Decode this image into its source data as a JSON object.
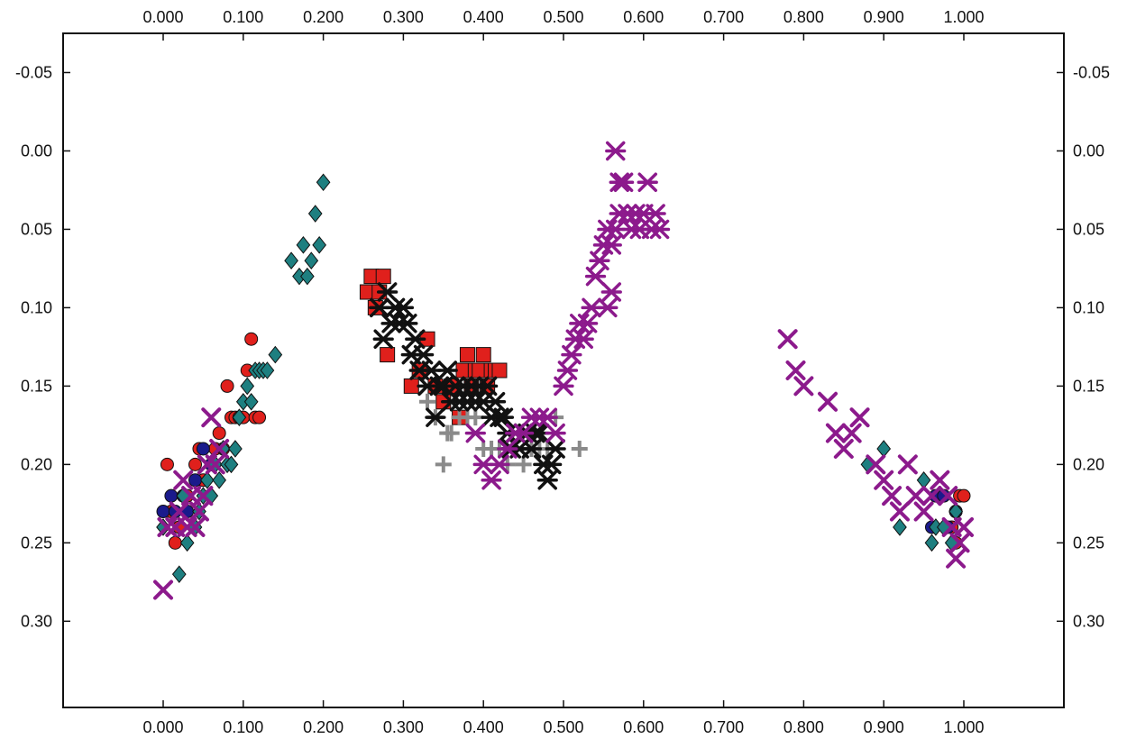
{
  "chart_data": {
    "type": "scatter",
    "title": "",
    "xlabel": "",
    "ylabel": "",
    "xlim": [
      -0.125,
      1.125
    ],
    "ylim": [
      0.355,
      -0.075
    ],
    "y_inverted": true,
    "grid": false,
    "legend": "none",
    "x_ticks": [
      "0.000",
      "0.100",
      "0.200",
      "0.300",
      "0.400",
      "0.500",
      "0.600",
      "0.700",
      "0.800",
      "0.900",
      "1.000"
    ],
    "y_ticks": [
      "-0.05",
      "0.00",
      "0.05",
      "0.10",
      "0.15",
      "0.20",
      "0.25",
      "0.30"
    ],
    "series": [
      {
        "marker": "circle",
        "color": "#e0201c",
        "points": [
          [
            0.005,
            0.2
          ],
          [
            0.01,
            0.23
          ],
          [
            0.015,
            0.25
          ],
          [
            0.02,
            0.24
          ],
          [
            0.03,
            0.22
          ],
          [
            0.04,
            0.2
          ],
          [
            0.045,
            0.19
          ],
          [
            0.05,
            0.21
          ],
          [
            0.06,
            0.2
          ],
          [
            0.065,
            0.19
          ],
          [
            0.07,
            0.18
          ],
          [
            0.075,
            0.19
          ],
          [
            0.08,
            0.15
          ],
          [
            0.085,
            0.17
          ],
          [
            0.09,
            0.17
          ],
          [
            0.095,
            0.17
          ],
          [
            0.1,
            0.17
          ],
          [
            0.105,
            0.14
          ],
          [
            0.11,
            0.12
          ],
          [
            0.115,
            0.17
          ],
          [
            0.12,
            0.17
          ],
          [
            0.985,
            0.24
          ],
          [
            0.99,
            0.23
          ],
          [
            0.995,
            0.22
          ],
          [
            1.0,
            0.22
          ],
          [
            0.99,
            0.25
          ]
        ]
      },
      {
        "marker": "circle",
        "color": "#1a1a8c",
        "points": [
          [
            0.0,
            0.23
          ],
          [
            0.01,
            0.22
          ],
          [
            0.015,
            0.23
          ],
          [
            0.025,
            0.22
          ],
          [
            0.03,
            0.23
          ],
          [
            0.04,
            0.21
          ],
          [
            0.05,
            0.19
          ],
          [
            0.06,
            0.2
          ],
          [
            0.96,
            0.24
          ],
          [
            0.965,
            0.22
          ],
          [
            0.975,
            0.22
          ],
          [
            0.98,
            0.24
          ],
          [
            0.99,
            0.23
          ]
        ]
      },
      {
        "marker": "diamond",
        "color": "#1e7f80",
        "points": [
          [
            0.0,
            0.24
          ],
          [
            0.02,
            0.27
          ],
          [
            0.025,
            0.22
          ],
          [
            0.03,
            0.25
          ],
          [
            0.04,
            0.24
          ],
          [
            0.045,
            0.23
          ],
          [
            0.05,
            0.22
          ],
          [
            0.055,
            0.21
          ],
          [
            0.06,
            0.22
          ],
          [
            0.065,
            0.2
          ],
          [
            0.07,
            0.21
          ],
          [
            0.075,
            0.19
          ],
          [
            0.08,
            0.2
          ],
          [
            0.085,
            0.2
          ],
          [
            0.09,
            0.19
          ],
          [
            0.095,
            0.17
          ],
          [
            0.1,
            0.16
          ],
          [
            0.105,
            0.15
          ],
          [
            0.11,
            0.16
          ],
          [
            0.115,
            0.14
          ],
          [
            0.12,
            0.14
          ],
          [
            0.125,
            0.14
          ],
          [
            0.13,
            0.14
          ],
          [
            0.14,
            0.13
          ],
          [
            0.16,
            0.07
          ],
          [
            0.17,
            0.08
          ],
          [
            0.175,
            0.06
          ],
          [
            0.18,
            0.08
          ],
          [
            0.185,
            0.07
          ],
          [
            0.19,
            0.04
          ],
          [
            0.195,
            0.06
          ],
          [
            0.2,
            0.02
          ],
          [
            0.88,
            0.2
          ],
          [
            0.9,
            0.19
          ],
          [
            0.92,
            0.24
          ],
          [
            0.95,
            0.21
          ],
          [
            0.96,
            0.25
          ],
          [
            0.965,
            0.24
          ],
          [
            0.975,
            0.24
          ],
          [
            0.99,
            0.23
          ],
          [
            0.985,
            0.25
          ]
        ]
      },
      {
        "marker": "x",
        "color": "#8c1a8c",
        "points": [
          [
            0.0,
            0.28
          ],
          [
            0.005,
            0.24
          ],
          [
            0.015,
            0.24
          ],
          [
            0.02,
            0.23
          ],
          [
            0.025,
            0.21
          ],
          [
            0.03,
            0.24
          ],
          [
            0.035,
            0.22
          ],
          [
            0.04,
            0.24
          ],
          [
            0.045,
            0.23
          ],
          [
            0.05,
            0.22
          ],
          [
            0.055,
            0.2
          ],
          [
            0.06,
            0.17
          ],
          [
            0.065,
            0.2
          ],
          [
            0.07,
            0.19
          ],
          [
            0.78,
            0.12
          ],
          [
            0.79,
            0.14
          ],
          [
            0.8,
            0.15
          ],
          [
            0.83,
            0.16
          ],
          [
            0.84,
            0.18
          ],
          [
            0.85,
            0.19
          ],
          [
            0.86,
            0.18
          ],
          [
            0.87,
            0.17
          ],
          [
            0.89,
            0.2
          ],
          [
            0.9,
            0.21
          ],
          [
            0.91,
            0.22
          ],
          [
            0.92,
            0.23
          ],
          [
            0.93,
            0.2
          ],
          [
            0.94,
            0.22
          ],
          [
            0.95,
            0.23
          ],
          [
            0.96,
            0.22
          ],
          [
            0.97,
            0.21
          ],
          [
            0.98,
            0.22
          ],
          [
            0.985,
            0.24
          ],
          [
            0.99,
            0.26
          ],
          [
            0.995,
            0.25
          ],
          [
            1.0,
            0.24
          ]
        ]
      },
      {
        "marker": "square",
        "color": "#e0201c",
        "points": [
          [
            0.255,
            0.09
          ],
          [
            0.26,
            0.08
          ],
          [
            0.265,
            0.1
          ],
          [
            0.27,
            0.09
          ],
          [
            0.275,
            0.08
          ],
          [
            0.28,
            0.13
          ],
          [
            0.31,
            0.15
          ],
          [
            0.32,
            0.14
          ],
          [
            0.33,
            0.12
          ],
          [
            0.34,
            0.15
          ],
          [
            0.35,
            0.16
          ],
          [
            0.36,
            0.15
          ],
          [
            0.37,
            0.17
          ],
          [
            0.375,
            0.14
          ],
          [
            0.38,
            0.13
          ],
          [
            0.385,
            0.15
          ],
          [
            0.39,
            0.14
          ],
          [
            0.395,
            0.14
          ],
          [
            0.4,
            0.13
          ],
          [
            0.405,
            0.15
          ],
          [
            0.41,
            0.14
          ],
          [
            0.415,
            0.14
          ],
          [
            0.42,
            0.14
          ]
        ]
      },
      {
        "marker": "plus",
        "color": "#8a8a8a",
        "points": [
          [
            0.33,
            0.16
          ],
          [
            0.34,
            0.17
          ],
          [
            0.35,
            0.2
          ],
          [
            0.355,
            0.18
          ],
          [
            0.36,
            0.18
          ],
          [
            0.37,
            0.17
          ],
          [
            0.38,
            0.17
          ],
          [
            0.39,
            0.17
          ],
          [
            0.4,
            0.19
          ],
          [
            0.41,
            0.19
          ],
          [
            0.42,
            0.19
          ],
          [
            0.44,
            0.19
          ],
          [
            0.45,
            0.2
          ],
          [
            0.46,
            0.19
          ],
          [
            0.47,
            0.19
          ],
          [
            0.48,
            0.19
          ],
          [
            0.49,
            0.17
          ],
          [
            0.52,
            0.19
          ],
          [
            0.43,
            0.2
          ]
        ]
      },
      {
        "marker": "star",
        "color": "#111111",
        "points": [
          [
            0.27,
            0.1
          ],
          [
            0.275,
            0.12
          ],
          [
            0.28,
            0.09
          ],
          [
            0.285,
            0.11
          ],
          [
            0.29,
            0.1
          ],
          [
            0.295,
            0.11
          ],
          [
            0.3,
            0.1
          ],
          [
            0.305,
            0.11
          ],
          [
            0.31,
            0.13
          ],
          [
            0.315,
            0.12
          ],
          [
            0.32,
            0.14
          ],
          [
            0.325,
            0.13
          ],
          [
            0.33,
            0.15
          ],
          [
            0.335,
            0.14
          ],
          [
            0.34,
            0.17
          ],
          [
            0.345,
            0.15
          ],
          [
            0.35,
            0.15
          ],
          [
            0.355,
            0.14
          ],
          [
            0.36,
            0.16
          ],
          [
            0.365,
            0.15
          ],
          [
            0.37,
            0.16
          ],
          [
            0.375,
            0.15
          ],
          [
            0.38,
            0.16
          ],
          [
            0.385,
            0.15
          ],
          [
            0.39,
            0.16
          ],
          [
            0.395,
            0.15
          ],
          [
            0.4,
            0.16
          ],
          [
            0.405,
            0.15
          ],
          [
            0.41,
            0.17
          ],
          [
            0.415,
            0.16
          ],
          [
            0.42,
            0.17
          ],
          [
            0.425,
            0.17
          ],
          [
            0.43,
            0.18
          ],
          [
            0.435,
            0.19
          ],
          [
            0.44,
            0.18
          ],
          [
            0.445,
            0.19
          ],
          [
            0.45,
            0.18
          ],
          [
            0.455,
            0.18
          ],
          [
            0.46,
            0.19
          ],
          [
            0.465,
            0.18
          ],
          [
            0.47,
            0.18
          ],
          [
            0.475,
            0.2
          ],
          [
            0.48,
            0.21
          ],
          [
            0.485,
            0.2
          ],
          [
            0.49,
            0.19
          ]
        ]
      },
      {
        "marker": "star",
        "color": "#8c1a8c",
        "points": [
          [
            0.39,
            0.18
          ],
          [
            0.4,
            0.2
          ],
          [
            0.41,
            0.21
          ],
          [
            0.42,
            0.2
          ],
          [
            0.43,
            0.19
          ],
          [
            0.44,
            0.18
          ],
          [
            0.45,
            0.18
          ],
          [
            0.46,
            0.17
          ],
          [
            0.47,
            0.17
          ],
          [
            0.48,
            0.17
          ],
          [
            0.49,
            0.18
          ],
          [
            0.5,
            0.15
          ],
          [
            0.505,
            0.14
          ],
          [
            0.51,
            0.13
          ],
          [
            0.515,
            0.12
          ],
          [
            0.52,
            0.11
          ],
          [
            0.525,
            0.12
          ],
          [
            0.53,
            0.11
          ],
          [
            0.535,
            0.1
          ],
          [
            0.54,
            0.08
          ],
          [
            0.545,
            0.07
          ],
          [
            0.55,
            0.06
          ],
          [
            0.555,
            0.05
          ],
          [
            0.56,
            0.06
          ],
          [
            0.565,
            0.05
          ],
          [
            0.57,
            0.04
          ],
          [
            0.575,
            0.02
          ],
          [
            0.58,
            0.04
          ],
          [
            0.585,
            0.05
          ],
          [
            0.59,
            0.04
          ],
          [
            0.595,
            0.05
          ],
          [
            0.6,
            0.04
          ],
          [
            0.605,
            0.02
          ],
          [
            0.61,
            0.05
          ],
          [
            0.615,
            0.04
          ],
          [
            0.62,
            0.05
          ],
          [
            0.565,
            0.0
          ],
          [
            0.57,
            0.02
          ],
          [
            0.555,
            0.1
          ],
          [
            0.56,
            0.09
          ]
        ]
      }
    ]
  }
}
